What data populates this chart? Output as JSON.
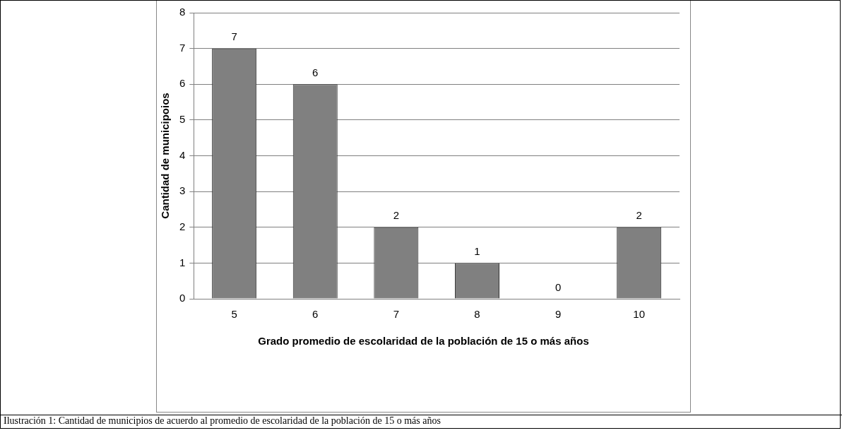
{
  "chart_data": {
    "type": "bar",
    "xlabel": "Grado promedio de escolaridad de la población de 15 o más años",
    "ylabel": "Cantidad de municipoios",
    "categories": [
      "5",
      "6",
      "7",
      "8",
      "9",
      "10"
    ],
    "values": [
      7,
      6,
      2,
      1,
      0,
      2
    ],
    "color": "#808080",
    "ylim": [
      0,
      8
    ],
    "yticks": [
      0,
      1,
      2,
      3,
      4,
      5,
      6,
      7,
      8
    ],
    "grid": "y",
    "data_labels": true,
    "legend": false,
    "annotations": [
      "Ilustración 1: Cantidad de municipios de acuerdo al promedio de escolaridad de la población de 15 o más años"
    ]
  }
}
